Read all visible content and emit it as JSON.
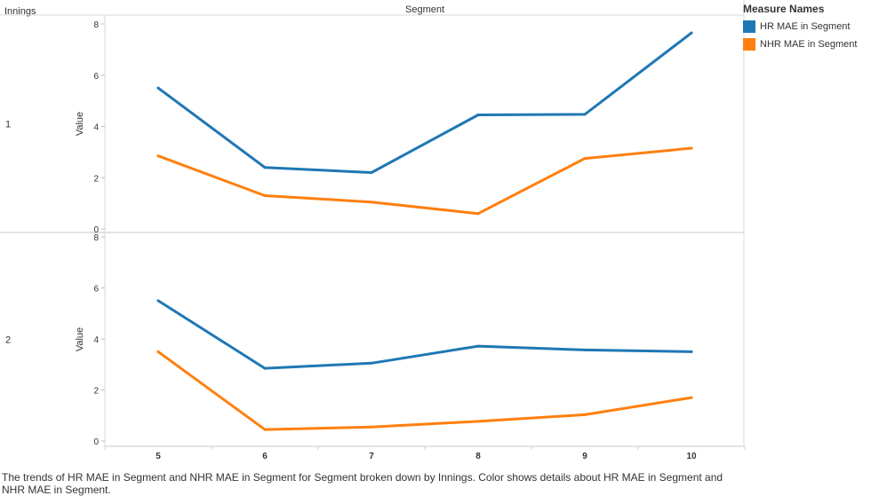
{
  "header": {
    "row_field": "Innings",
    "column_field": "Segment"
  },
  "legend": {
    "title": "Measure Names",
    "items": [
      {
        "label": "HR MAE in Segment",
        "color": "#1f77b4"
      },
      {
        "label": "NHR MAE in Segment",
        "color": "#ff7f0e"
      }
    ]
  },
  "caption": "The trends of HR MAE in Segment and NHR MAE in Segment for Segment broken down by Innings.  Color shows details about HR MAE in Segment and NHR MAE in Segment.",
  "chart_data": {
    "type": "line",
    "categories": [
      "5",
      "6",
      "7",
      "8",
      "9",
      "10"
    ],
    "ylabel": "Value",
    "ylim": [
      0,
      8
    ],
    "yticks": [
      "0",
      "2",
      "4",
      "6",
      "8"
    ],
    "grid": false,
    "legend_position": "right",
    "panels": [
      {
        "row_label": "1",
        "series": [
          {
            "name": "HR MAE in Segment",
            "color": "#1f77b4",
            "values": [
              5.5,
              2.4,
              2.2,
              4.45,
              4.47,
              7.65
            ]
          },
          {
            "name": "NHR MAE in Segment",
            "color": "#ff7f0e",
            "values": [
              2.85,
              1.3,
              1.05,
              0.6,
              2.75,
              3.15
            ]
          }
        ]
      },
      {
        "row_label": "2",
        "series": [
          {
            "name": "HR MAE in Segment",
            "color": "#1f77b4",
            "values": [
              5.5,
              2.85,
              3.05,
              3.72,
              3.57,
              3.5
            ]
          },
          {
            "name": "NHR MAE in Segment",
            "color": "#ff7f0e",
            "values": [
              3.5,
              0.45,
              0.55,
              0.77,
              1.03,
              1.7
            ]
          }
        ]
      }
    ]
  }
}
